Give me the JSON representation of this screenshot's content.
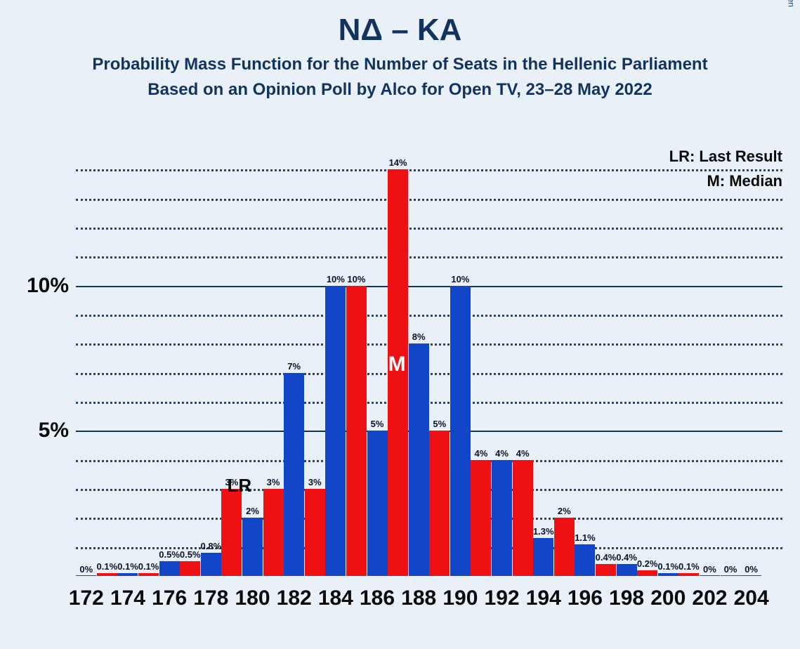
{
  "title": "ΝΔ – ΚΑ",
  "subtitle1": "Probability Mass Function for the Number of Seats in the Hellenic Parliament",
  "subtitle2": "Based on an Opinion Poll by Alco for Open TV, 23–28 May 2022",
  "credit": "© 2022 Filip van Laenen",
  "legend_lr": "LR: Last Result",
  "legend_m": "M: Median",
  "colors": {
    "blue": "#1246c9",
    "red": "#ef1013",
    "bg": "#e9f0f8",
    "text": "#13335f"
  },
  "chart": {
    "type": "bar",
    "ymax": 15,
    "yticks_major": [
      5,
      10
    ],
    "yticks_minor": [
      1,
      2,
      3,
      4,
      6,
      7,
      8,
      9,
      11,
      12,
      13,
      14
    ],
    "ytick_labels": {
      "5": "5%",
      "10": "10%"
    },
    "x_start": 172,
    "x_end": 205,
    "x_ticks": [
      172,
      174,
      176,
      178,
      180,
      182,
      184,
      186,
      188,
      190,
      192,
      194,
      196,
      198,
      200,
      202,
      204
    ],
    "lr_seat": 180,
    "m_seat": 186,
    "bars": [
      {
        "x": 172,
        "c": "blue",
        "v": 0,
        "label": "0%"
      },
      {
        "x": 173,
        "c": "red",
        "v": 0.1,
        "label": "0.1%"
      },
      {
        "x": 174,
        "c": "blue",
        "v": 0.1,
        "label": "0.1%"
      },
      {
        "x": 175,
        "c": "red",
        "v": 0.1,
        "label": "0.1%"
      },
      {
        "x": 176,
        "c": "blue",
        "v": 0.5,
        "label": "0.5%"
      },
      {
        "x": 177,
        "c": "red",
        "v": 0.5,
        "label": "0.5%"
      },
      {
        "x": 178,
        "c": "blue",
        "v": 0.8,
        "label": "0.8%"
      },
      {
        "x": 179,
        "c": "red",
        "v": 3,
        "label": "3%"
      },
      {
        "x": 180,
        "c": "blue",
        "v": 2,
        "label": "2%"
      },
      {
        "x": 181,
        "c": "red",
        "v": 3,
        "label": "3%"
      },
      {
        "x": 182,
        "c": "blue",
        "v": 7,
        "label": "7%"
      },
      {
        "x": 183,
        "c": "red",
        "v": 3,
        "label": "3%"
      },
      {
        "x": 184,
        "c": "blue",
        "v": 10,
        "label": "10%"
      },
      {
        "x": 185,
        "c": "red",
        "v": 10,
        "label": "10%"
      },
      {
        "x": 186,
        "c": "blue",
        "v": 5,
        "label": "5%"
      },
      {
        "x": 187,
        "c": "red",
        "v": 14,
        "label": "14%"
      },
      {
        "x": 188,
        "c": "blue",
        "v": 8,
        "label": "8%"
      },
      {
        "x": 189,
        "c": "red",
        "v": 5,
        "label": "5%"
      },
      {
        "x": 190,
        "c": "blue",
        "v": 10,
        "label": "10%"
      },
      {
        "x": 191,
        "c": "red",
        "v": 4,
        "label": "4%"
      },
      {
        "x": 192,
        "c": "blue",
        "v": 4,
        "label": "4%"
      },
      {
        "x": 193,
        "c": "red",
        "v": 4,
        "label": "4%"
      },
      {
        "x": 194,
        "c": "blue",
        "v": 1.3,
        "label": "1.3%"
      },
      {
        "x": 195,
        "c": "red",
        "v": 2,
        "label": "2%"
      },
      {
        "x": 196,
        "c": "blue",
        "v": 1.1,
        "label": "1.1%"
      },
      {
        "x": 197,
        "c": "red",
        "v": 0.4,
        "label": "0.4%"
      },
      {
        "x": 198,
        "c": "blue",
        "v": 0.4,
        "label": "0.4%"
      },
      {
        "x": 199,
        "c": "red",
        "v": 0.2,
        "label": "0.2%"
      },
      {
        "x": 200,
        "c": "blue",
        "v": 0.1,
        "label": "0.1%"
      },
      {
        "x": 201,
        "c": "red",
        "v": 0.1,
        "label": "0.1%"
      },
      {
        "x": 202,
        "c": "blue",
        "v": 0,
        "label": "0%"
      },
      {
        "x": 203,
        "c": "red",
        "v": 0,
        "label": "0%"
      },
      {
        "x": 204,
        "c": "blue",
        "v": 0,
        "label": "0%"
      }
    ]
  }
}
